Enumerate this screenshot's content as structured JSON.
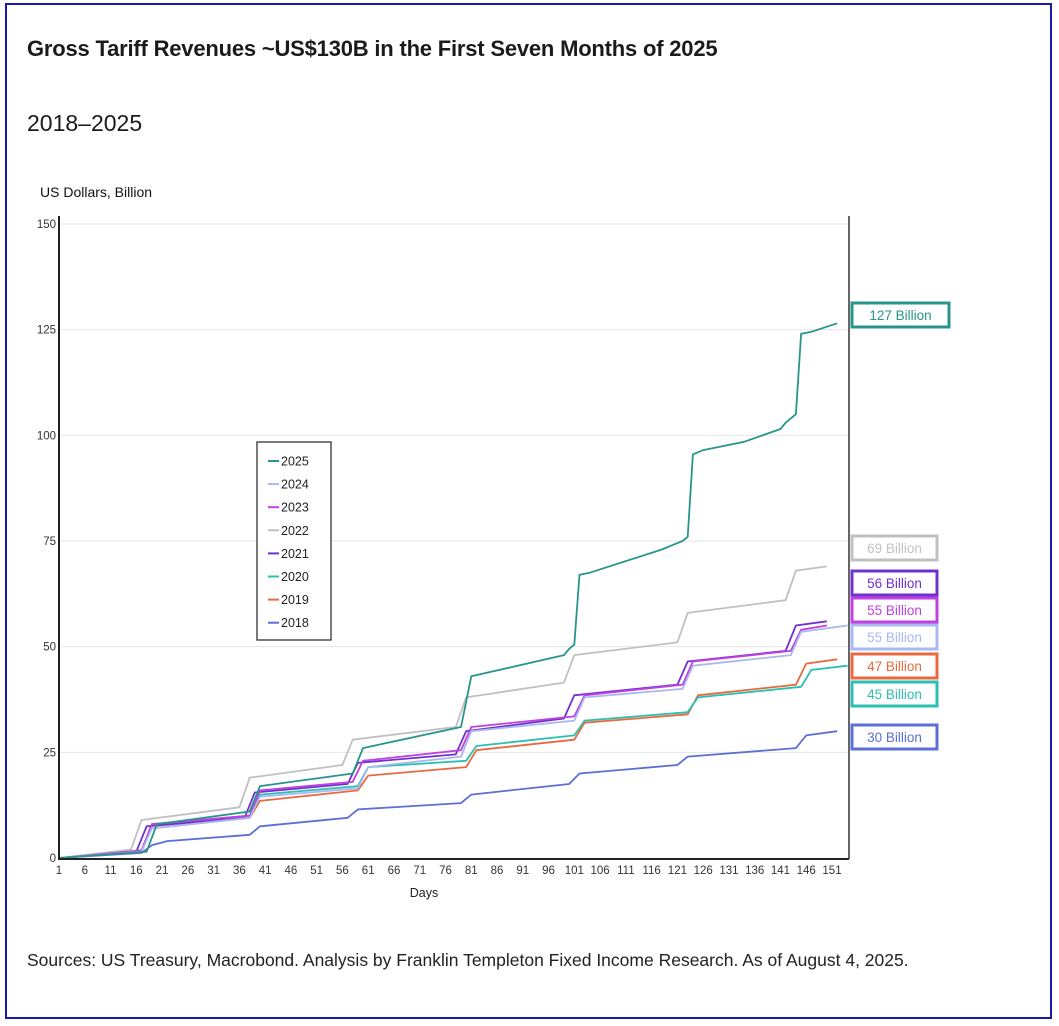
{
  "header": {
    "title": "Gross Tariff Revenues ~US$130B in the First Seven Months of 2025",
    "subtitle": "2018–2025"
  },
  "footer": {
    "source": "Sources: US Treasury, Macrobond. Analysis by Franklin Templeton Fixed Income Research. As of August 4, 2025."
  },
  "chart_data": {
    "type": "line",
    "title": "Gross Tariff Revenues ~US$130B in the First Seven Months of 2025",
    "subtitle": "2018–2025",
    "xlabel": "Days",
    "ylabel": "US Dollars, Billion",
    "xlim": [
      1,
      154
    ],
    "ylim": [
      0,
      150
    ],
    "x_ticks": [
      1,
      6,
      11,
      16,
      21,
      26,
      31,
      36,
      41,
      46,
      51,
      56,
      61,
      66,
      71,
      76,
      81,
      86,
      91,
      96,
      101,
      106,
      111,
      116,
      121,
      126,
      131,
      136,
      141,
      146,
      151
    ],
    "y_ticks": [
      0,
      25,
      50,
      75,
      100,
      125,
      150
    ],
    "grid": "horizontal",
    "legend_position": "left-middle",
    "series": [
      {
        "name": "2018",
        "color": "#5b6fd6",
        "end_label": "30 Billion",
        "points": [
          [
            1,
            0
          ],
          [
            17,
            1.2
          ],
          [
            19,
            3
          ],
          [
            22,
            4
          ],
          [
            38,
            5.5
          ],
          [
            40,
            7.5
          ],
          [
            57,
            9.5
          ],
          [
            59,
            11.5
          ],
          [
            79,
            13
          ],
          [
            81,
            15
          ],
          [
            100,
            17.5
          ],
          [
            102,
            20
          ],
          [
            121,
            22
          ],
          [
            123,
            24
          ],
          [
            144,
            26
          ],
          [
            146,
            29
          ],
          [
            152,
            30
          ]
        ]
      },
      {
        "name": "2019",
        "color": "#e8693e",
        "end_label": "47 Billion",
        "points": [
          [
            1,
            0
          ],
          [
            17,
            1.8
          ],
          [
            19,
            7
          ],
          [
            38,
            9.5
          ],
          [
            40,
            13.5
          ],
          [
            59,
            16
          ],
          [
            61,
            19.5
          ],
          [
            80,
            21.5
          ],
          [
            82,
            25.5
          ],
          [
            101,
            28
          ],
          [
            103,
            32
          ],
          [
            123,
            34
          ],
          [
            125,
            38.5
          ],
          [
            144,
            41
          ],
          [
            146,
            46
          ],
          [
            152,
            47
          ]
        ]
      },
      {
        "name": "2020",
        "color": "#2bbfb0",
        "end_label": "45 Billion",
        "points": [
          [
            1,
            0
          ],
          [
            17,
            1.5
          ],
          [
            19,
            8
          ],
          [
            38,
            10
          ],
          [
            40,
            15
          ],
          [
            59,
            17
          ],
          [
            61,
            21.5
          ],
          [
            80,
            23
          ],
          [
            82,
            26.5
          ],
          [
            101,
            29
          ],
          [
            103,
            32.5
          ],
          [
            123,
            34.5
          ],
          [
            125,
            38
          ],
          [
            145,
            40.5
          ],
          [
            147,
            44.5
          ],
          [
            154,
            45.5
          ]
        ]
      },
      {
        "name": "2021",
        "color": "#7030d0",
        "end_label": "56 Billion",
        "points": [
          [
            1,
            0
          ],
          [
            16,
            1.5
          ],
          [
            18,
            7.5
          ],
          [
            37,
            9.5
          ],
          [
            39,
            15.5
          ],
          [
            57,
            17.5
          ],
          [
            59,
            22.5
          ],
          [
            78,
            24.5
          ],
          [
            80,
            30
          ],
          [
            99,
            33
          ],
          [
            101,
            38.5
          ],
          [
            121,
            41
          ],
          [
            123,
            46.5
          ],
          [
            142,
            49
          ],
          [
            144,
            55
          ],
          [
            150,
            56
          ]
        ]
      },
      {
        "name": "2022",
        "color": "#c0c0c0",
        "end_label": "69 Billion",
        "points": [
          [
            1,
            0
          ],
          [
            15,
            2
          ],
          [
            17,
            9
          ],
          [
            36,
            12
          ],
          [
            38,
            19
          ],
          [
            56,
            22
          ],
          [
            58,
            28
          ],
          [
            78,
            31
          ],
          [
            80,
            38
          ],
          [
            99,
            41.5
          ],
          [
            101,
            48
          ],
          [
            121,
            51
          ],
          [
            123,
            58
          ],
          [
            142,
            61
          ],
          [
            144,
            68
          ],
          [
            150,
            69
          ]
        ]
      },
      {
        "name": "2023",
        "color": "#c040e0",
        "end_label": "55 Billion",
        "points": [
          [
            1,
            0
          ],
          [
            17,
            1.8
          ],
          [
            19,
            8
          ],
          [
            38,
            10
          ],
          [
            40,
            16
          ],
          [
            58,
            18
          ],
          [
            60,
            23
          ],
          [
            79,
            25.5
          ],
          [
            81,
            31
          ],
          [
            101,
            33.5
          ],
          [
            103,
            38.5
          ],
          [
            122,
            41
          ],
          [
            124,
            46.5
          ],
          [
            143,
            49
          ],
          [
            145,
            54
          ],
          [
            150,
            55
          ]
        ]
      },
      {
        "name": "2024",
        "color": "#a8b8f0",
        "end_label": "55 Billion",
        "points": [
          [
            1,
            0
          ],
          [
            17,
            1.5
          ],
          [
            19,
            7
          ],
          [
            38,
            9.5
          ],
          [
            40,
            14.5
          ],
          [
            59,
            16.5
          ],
          [
            61,
            21.5
          ],
          [
            79,
            24
          ],
          [
            81,
            30
          ],
          [
            101,
            32.5
          ],
          [
            103,
            38
          ],
          [
            122,
            40
          ],
          [
            124,
            45.5
          ],
          [
            143,
            48
          ],
          [
            145,
            53.5
          ],
          [
            154,
            55
          ]
        ]
      },
      {
        "name": "2025",
        "color": "#27968a",
        "end_label": "127 Billion",
        "points": [
          [
            1,
            0
          ],
          [
            18,
            1.5
          ],
          [
            20,
            8
          ],
          [
            38,
            11
          ],
          [
            40,
            17
          ],
          [
            58,
            20
          ],
          [
            60,
            26
          ],
          [
            79,
            31
          ],
          [
            81,
            43
          ],
          [
            99,
            48
          ],
          [
            100,
            49.5
          ],
          [
            101,
            50.5
          ],
          [
            102,
            67
          ],
          [
            104,
            67.5
          ],
          [
            118,
            73
          ],
          [
            120,
            74
          ],
          [
            122,
            75
          ],
          [
            123,
            76
          ],
          [
            124,
            95.5
          ],
          [
            126,
            96.5
          ],
          [
            134,
            98.5
          ],
          [
            141,
            101.5
          ],
          [
            142,
            103
          ],
          [
            144,
            105
          ],
          [
            145,
            124
          ],
          [
            147,
            124.5
          ],
          [
            152,
            126.5
          ]
        ]
      }
    ]
  }
}
